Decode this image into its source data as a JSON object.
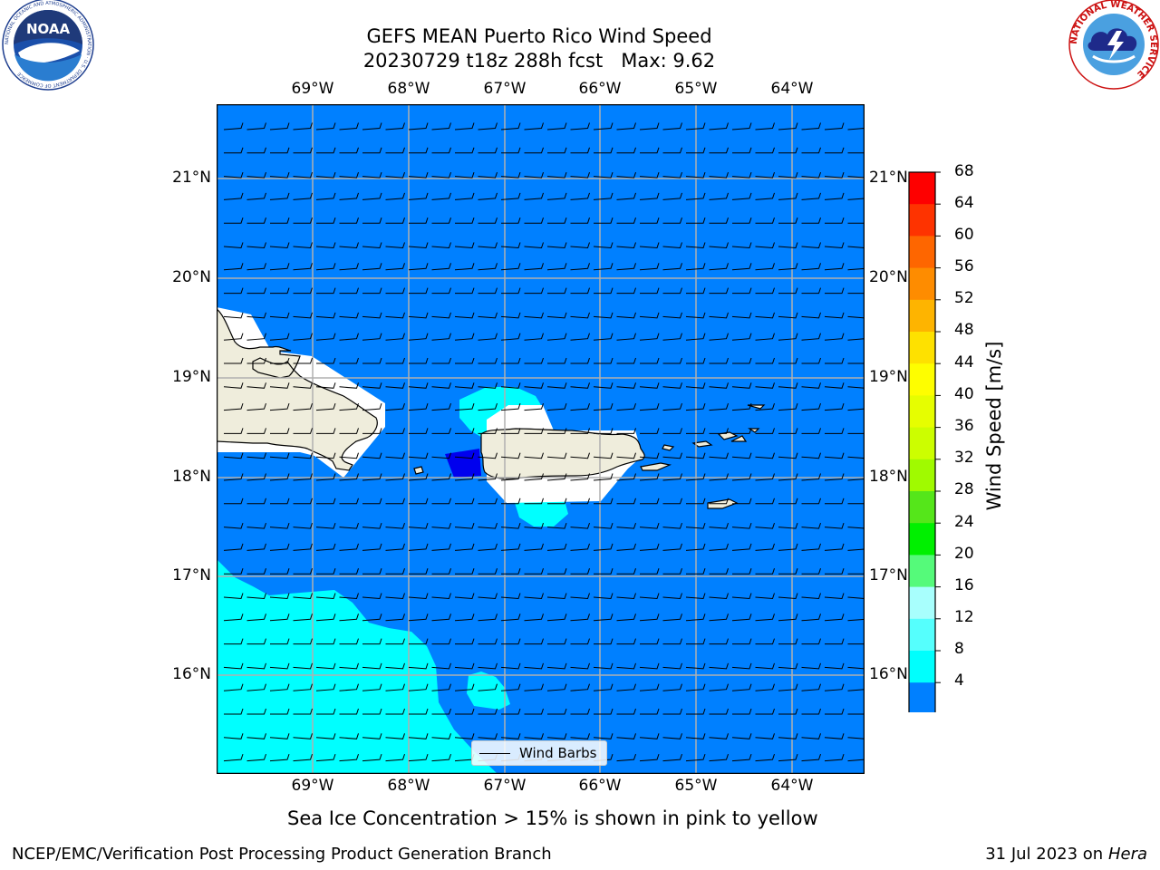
{
  "title": {
    "line1": "GEFS MEAN Puerto Rico Wind Speed",
    "line2": "20230729 t18z 288h fcst   Max: 9.62"
  },
  "axes": {
    "lon_labels": [
      "69°W",
      "68°W",
      "67°W",
      "66°W",
      "65°W",
      "64°W"
    ],
    "lat_labels": [
      "21°N",
      "20°N",
      "19°N",
      "18°N",
      "17°N",
      "16°N"
    ]
  },
  "colorbar": {
    "label": "Wind Speed [m/s]",
    "ticks": [
      "68",
      "64",
      "60",
      "56",
      "52",
      "48",
      "44",
      "40",
      "36",
      "32",
      "28",
      "24",
      "20",
      "16",
      "12",
      "8",
      "4"
    ],
    "colors": [
      "#fe0000",
      "#fe3300",
      "#fe6600",
      "#fe8c00",
      "#feb400",
      "#fee100",
      "#fefe00",
      "#e6fe00",
      "#ccfe00",
      "#a0fa00",
      "#55e61a",
      "#00f000",
      "#55fa7a",
      "#a8fffd",
      "#55fffd",
      "#00fffd",
      "#0080ff"
    ],
    "under_color": "#0000ee"
  },
  "map": {
    "ocean_color": "#0080ff",
    "land_color": "#efeddc",
    "calm_color": "#00ffff",
    "grid_color": "#b0b0b0"
  },
  "legend": {
    "label": "Wind Barbs"
  },
  "subtitle": "Sea Ice Concentration > 15% is shown in pink to yellow",
  "footer": {
    "left": "NCEP/EMC/Verification Post Processing Product Generation Branch",
    "right_date": "31 Jul 2023 on ",
    "right_machine": "Hera"
  },
  "logos": {
    "noaa": "NOAA",
    "noaa_ring": "NATIONAL OCEANIC AND ATMOSPHERIC ADMINISTRATION · U.S. DEPARTMENT OF COMMERCE",
    "nws_ring": "NATIONAL WEATHER SERVICE"
  }
}
